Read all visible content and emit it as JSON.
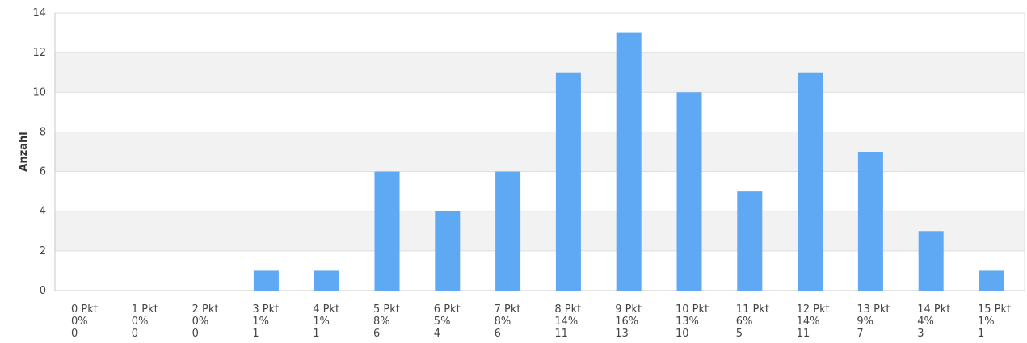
{
  "chart_data": {
    "type": "bar",
    "title": "",
    "xlabel": "",
    "ylabel": "Anzahl",
    "ylim": [
      0,
      14
    ],
    "yticks": [
      0,
      2,
      4,
      6,
      8,
      10,
      12,
      14
    ],
    "grid": true,
    "legend": "none",
    "colors": {
      "bar": "#5fa8f4",
      "band": "#f2f2f2",
      "grid": "#dddddd",
      "axis": "#c8c8c8"
    },
    "categories": [
      "0 Pkt",
      "1 Pkt",
      "2 Pkt",
      "3 Pkt",
      "4 Pkt",
      "5 Pkt",
      "6 Pkt",
      "7 Pkt",
      "8 Pkt",
      "9 Pkt",
      "10 Pkt",
      "11 Pkt",
      "12 Pkt",
      "13 Pkt",
      "14 Pkt",
      "15 Pkt"
    ],
    "percentages": [
      "0%",
      "0%",
      "0%",
      "1%",
      "1%",
      "8%",
      "5%",
      "8%",
      "14%",
      "16%",
      "13%",
      "6%",
      "14%",
      "9%",
      "4%",
      "1%"
    ],
    "counts": [
      "0",
      "0",
      "0",
      "1",
      "1",
      "6",
      "4",
      "6",
      "11",
      "13",
      "10",
      "5",
      "11",
      "7",
      "3",
      "1"
    ],
    "values": [
      0,
      0,
      0,
      1,
      1,
      6,
      4,
      6,
      11,
      13,
      10,
      5,
      11,
      7,
      3,
      1
    ]
  }
}
